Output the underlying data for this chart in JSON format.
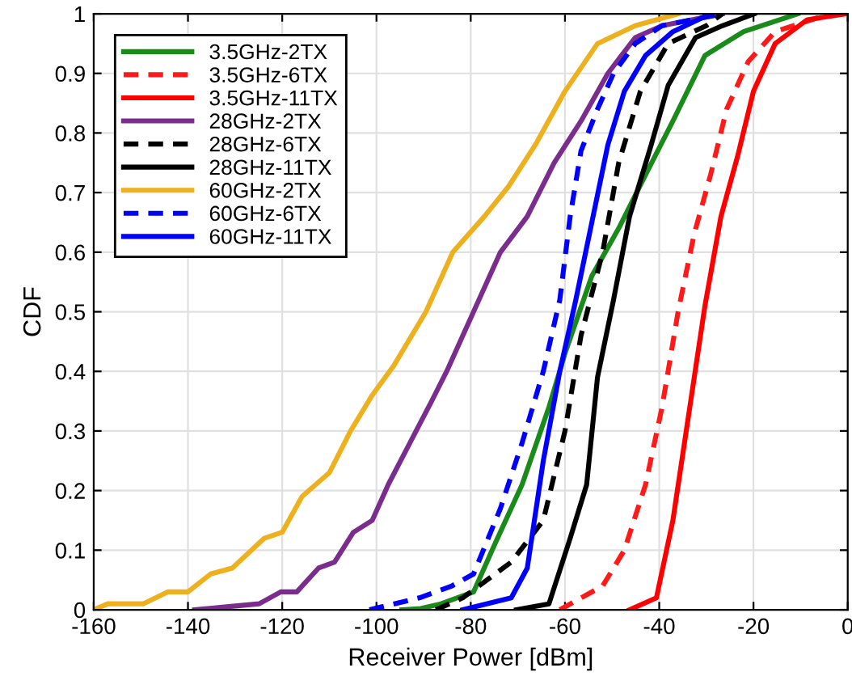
{
  "chart_data": {
    "type": "line",
    "xlabel": "Receiver Power [dBm]",
    "ylabel": "CDF",
    "xlim": [
      -160,
      0
    ],
    "ylim": [
      0,
      1
    ],
    "xticks": [
      -160,
      -140,
      -120,
      -100,
      -80,
      -60,
      -40,
      -20,
      0
    ],
    "yticks": [
      0,
      0.1,
      0.2,
      0.3,
      0.4,
      0.5,
      0.6,
      0.7,
      0.8,
      0.9,
      1
    ],
    "grid": true,
    "legend": "top left",
    "series": [
      {
        "name": "3.5GHz-2TX",
        "color": "#1a8a1a",
        "line_style": "solid",
        "x": [
          -94.6,
          -90.6,
          -86.3,
          -79.4,
          -74.9,
          -69.1,
          -63.4,
          -60.0,
          -54.3,
          -48.6,
          -42.9,
          -37.1,
          -30.3,
          -22.1,
          -10.6
        ],
        "values": [
          0,
          0.002,
          0.01,
          0.03,
          0.11,
          0.21,
          0.34,
          0.43,
          0.56,
          0.64,
          0.73,
          0.82,
          0.93,
          0.97,
          1
        ]
      },
      {
        "name": "3.5GHz-6TX",
        "color": "#ff1a1a",
        "line_style": "dashed",
        "x": [
          -61.1,
          -52.0,
          -47.4,
          -42.9,
          -39.4,
          -36.0,
          -32.6,
          -29.1,
          -25.7,
          -21.1,
          -15.4,
          -3.8
        ],
        "values": [
          0,
          0.04,
          0.1,
          0.21,
          0.34,
          0.5,
          0.63,
          0.73,
          0.84,
          0.92,
          0.97,
          1
        ]
      },
      {
        "name": "3.5GHz-11TX",
        "color": "#ff0000",
        "line_style": "solid",
        "x": [
          -46.3,
          -40.6,
          -37.1,
          -33.7,
          -30.3,
          -26.9,
          -23.4,
          -20.0,
          -15.4,
          -8.6,
          -0.3
        ],
        "values": [
          0,
          0.02,
          0.15,
          0.33,
          0.51,
          0.66,
          0.76,
          0.87,
          0.95,
          0.99,
          1
        ]
      },
      {
        "name": "28GHz-2TX",
        "color": "#7b2d8e",
        "line_style": "solid",
        "x": [
          -138.6,
          -131.8,
          -124.9,
          -120.3,
          -116.9,
          -112.3,
          -108.9,
          -104.9,
          -100.9,
          -97.5,
          -92.9,
          -88.3,
          -85.1,
          -79.4,
          -73.7,
          -68.0,
          -62.3,
          -56.6,
          -50.9,
          -45.1,
          -39.4,
          -26.6
        ],
        "values": [
          0,
          0.005,
          0.01,
          0.03,
          0.03,
          0.07,
          0.08,
          0.13,
          0.15,
          0.21,
          0.28,
          0.35,
          0.4,
          0.5,
          0.6,
          0.66,
          0.75,
          0.82,
          0.9,
          0.96,
          0.98,
          1
        ]
      },
      {
        "name": "28GHz-6TX",
        "color": "#000000",
        "line_style": "dashed",
        "x": [
          -87.4,
          -81.7,
          -71.4,
          -64.6,
          -60.0,
          -56.6,
          -52.0,
          -48.6,
          -44.0,
          -38.1,
          -30.0,
          -26.6
        ],
        "values": [
          0,
          0.02,
          0.08,
          0.15,
          0.3,
          0.46,
          0.6,
          0.75,
          0.87,
          0.95,
          0.98,
          1
        ]
      },
      {
        "name": "28GHz-11TX",
        "color": "#000000",
        "line_style": "solid",
        "x": [
          -70.3,
          -63.4,
          -58.9,
          -55.4,
          -53.1,
          -49.7,
          -46.3,
          -41.7,
          -38.1,
          -32.3,
          -26.6,
          -19.8
        ],
        "values": [
          0,
          0.01,
          0.12,
          0.21,
          0.39,
          0.52,
          0.66,
          0.78,
          0.88,
          0.96,
          0.98,
          1
        ]
      },
      {
        "name": "60GHz-2TX",
        "color": "#edb120",
        "line_style": "solid",
        "x": [
          -160.0,
          -157.0,
          -149.5,
          -144.3,
          -140.0,
          -135.2,
          -130.6,
          -123.8,
          -120.0,
          -115.8,
          -110.0,
          -105.5,
          -100.9,
          -96.3,
          -89.5,
          -83.8,
          -77.1,
          -72.0,
          -66.3,
          -60.0,
          -53.1,
          -45.1,
          -36.0
        ],
        "values": [
          0,
          0.01,
          0.01,
          0.03,
          0.03,
          0.06,
          0.07,
          0.12,
          0.13,
          0.19,
          0.23,
          0.3,
          0.36,
          0.41,
          0.5,
          0.6,
          0.66,
          0.71,
          0.78,
          0.87,
          0.95,
          0.98,
          1
        ]
      },
      {
        "name": "60GHz-6TX",
        "color": "#0000ff",
        "line_style": "dashed",
        "x": [
          -101.5,
          -90.9,
          -84.0,
          -79.4,
          -73.7,
          -69.1,
          -64.6,
          -61.1,
          -58.9,
          -56.6,
          -53.1,
          -49.7,
          -45.1,
          -39.4,
          -26.6
        ],
        "values": [
          0,
          0.02,
          0.04,
          0.06,
          0.17,
          0.28,
          0.4,
          0.52,
          0.66,
          0.77,
          0.84,
          0.9,
          0.95,
          0.98,
          1
        ]
      },
      {
        "name": "60GHz-11TX",
        "color": "#0000ff",
        "line_style": "solid",
        "x": [
          -81.7,
          -71.4,
          -68.0,
          -64.6,
          -61.1,
          -57.7,
          -54.3,
          -50.9,
          -47.4,
          -42.9,
          -37.1,
          -29.1
        ],
        "values": [
          0,
          0.02,
          0.07,
          0.25,
          0.4,
          0.52,
          0.65,
          0.78,
          0.87,
          0.93,
          0.97,
          1
        ]
      }
    ]
  }
}
